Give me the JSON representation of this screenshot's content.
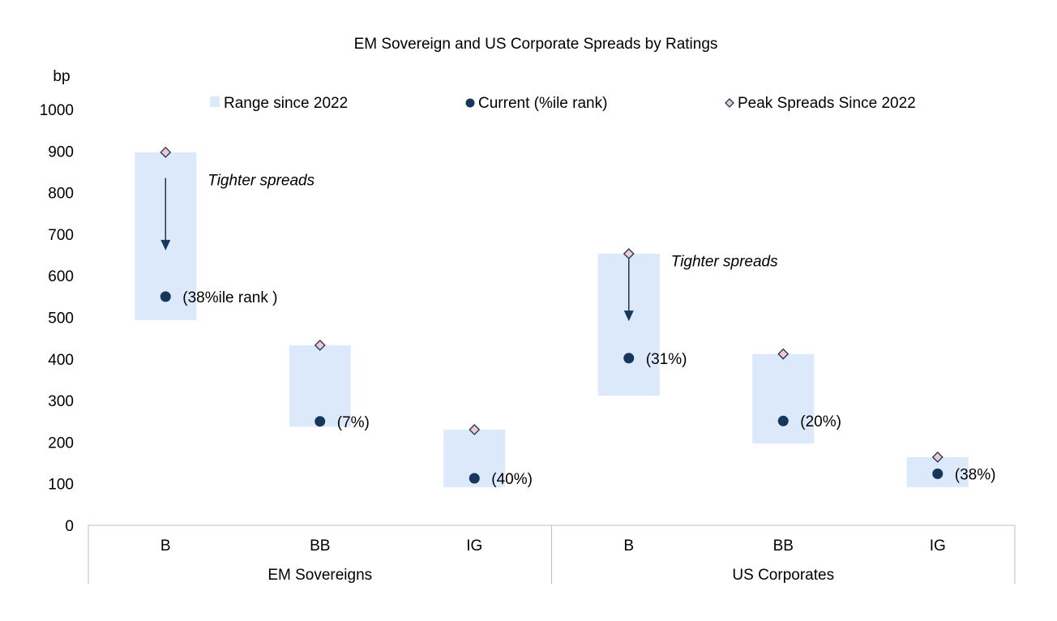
{
  "chart_data": {
    "type": "range-dot",
    "title": "EM Sovereign and US Corporate Spreads by Ratings",
    "ylabel": "bp",
    "ylim": [
      0,
      1000
    ],
    "yticks": [
      0,
      100,
      200,
      300,
      400,
      500,
      600,
      700,
      800,
      900,
      1000
    ],
    "grid": false,
    "legend_position": "top",
    "legend": [
      {
        "label": "Range since 2022",
        "marker": "range-box"
      },
      {
        "label": "Current (%ile rank)",
        "marker": "dot"
      },
      {
        "label": "Peak Spreads Since 2022",
        "marker": "diamond"
      }
    ],
    "groups": [
      "EM Sovereigns",
      "US Corporates"
    ],
    "categories": [
      {
        "group": "EM Sovereigns",
        "label": "B",
        "range": [
          493,
          897
        ],
        "current": 550,
        "peak": 897,
        "rank_label": "(38%ile rank )"
      },
      {
        "group": "EM Sovereigns",
        "label": "BB",
        "range": [
          237,
          433
        ],
        "current": 250,
        "peak": 433,
        "rank_label": "(7%)"
      },
      {
        "group": "EM Sovereigns",
        "label": "IG",
        "range": [
          92,
          230
        ],
        "current": 113,
        "peak": 230,
        "rank_label": "(40%)"
      },
      {
        "group": "US Corporates",
        "label": "B",
        "range": [
          312,
          653
        ],
        "current": 402,
        "peak": 653,
        "rank_label": "(31%)"
      },
      {
        "group": "US Corporates",
        "label": "BB",
        "range": [
          197,
          412
        ],
        "current": 251,
        "peak": 412,
        "rank_label": "(20%)"
      },
      {
        "group": "US Corporates",
        "label": "IG",
        "range": [
          92,
          164
        ],
        "current": 124,
        "peak": 164,
        "rank_label": "(38%)"
      }
    ],
    "annotations": [
      {
        "text": "Tighter spreads",
        "category_index": 0,
        "arrow_from": 835,
        "arrow_to": 665
      },
      {
        "text": "Tighter spreads",
        "category_index": 3,
        "arrow_from": 640,
        "arrow_to": 495
      }
    ],
    "colors": {
      "range": "#dbe9fa",
      "current": "#16365c",
      "peak_fill": "#f2c9c6",
      "peak_stroke": "#16365c",
      "axis": "#bfbfbf"
    }
  }
}
